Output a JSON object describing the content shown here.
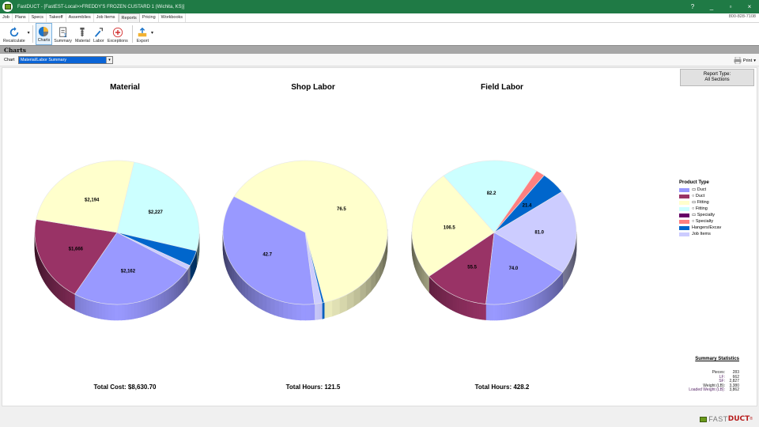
{
  "window": {
    "title": "FastDUCT - [FastEST-Local>>FREDDY'S FROZEN CUSTARD 1 (Wichita, KS)]",
    "controls": [
      "?",
      "_",
      "▫",
      "×"
    ]
  },
  "menu": {
    "tabs": [
      "Job",
      "Plans",
      "Specs",
      "Takeoff",
      "Assemblies",
      "Job Items",
      "Reports",
      "Pricing",
      "Workbooks"
    ],
    "active_tab": "Reports",
    "phone": "800-828-7108"
  },
  "toolbar": {
    "recalculate": "Recalculate",
    "charts": "Charts",
    "summary": "Summary",
    "material": "Material",
    "labor": "Labor",
    "exceptions": "Exceptions",
    "export": "Export"
  },
  "section": {
    "title": "Charts"
  },
  "chart_selector": {
    "label": "Chart",
    "value": "Material/Labor Summary",
    "print": "Print"
  },
  "report_type": {
    "line1": "Report Type:",
    "line2": "All Sections"
  },
  "legend": {
    "title": "Product Type",
    "items": [
      {
        "label": "▭ Duct",
        "color": "#9999ff"
      },
      {
        "label": "○ Duct",
        "color": "#993366"
      },
      {
        "label": "▭ Fitting",
        "color": "#ffffcc"
      },
      {
        "label": "○ Fitting",
        "color": "#ccffff"
      },
      {
        "label": "▭ Specialty",
        "color": "#660066"
      },
      {
        "label": "○ Specialty",
        "color": "#ff8080"
      },
      {
        "label": "Hangers/Excav",
        "color": "#0066cc"
      },
      {
        "label": "Job Items",
        "color": "#ccccff"
      }
    ]
  },
  "summary_statistics": {
    "title": "Summary Statistics",
    "rows": [
      {
        "key": "Pieces:",
        "value": "283"
      },
      {
        "key": "LF:",
        "value": "662"
      },
      {
        "key": "SF:",
        "value": "2,827"
      },
      {
        "key": "Weight (LB):",
        "value": "3,380"
      },
      {
        "key": "Loaded Weight (LB):",
        "value": "3,862"
      }
    ]
  },
  "charts": [
    {
      "title": "Material",
      "total": "Total Cost: $8,630.70"
    },
    {
      "title": "Shop Labor",
      "total": "Total Hours: 121.5"
    },
    {
      "title": "Field Labor",
      "total": "Total Hours: 428.2"
    }
  ],
  "chart_data": [
    {
      "type": "pie",
      "title": "Material",
      "subtitle": "Total Cost: $8,630.70",
      "categories": [
        "○ Fitting",
        "Hangers/Excav",
        "Job Items",
        "▭ Duct",
        "○ Duct",
        "▭ Fitting"
      ],
      "values": [
        2227,
        300,
        82,
        2162,
        1666,
        2194
      ],
      "labels": [
        "$2,227",
        "",
        "",
        "$2,162",
        "$1,666",
        "$2,194"
      ],
      "colors": [
        "#ccffff",
        "#0066cc",
        "#ccccff",
        "#9999ff",
        "#993366",
        "#ffffcc"
      ],
      "start_angle_deg": -78
    },
    {
      "type": "pie",
      "title": "Shop Labor",
      "subtitle": "Total Hours: 121.5",
      "categories": [
        "▭ Fitting",
        "Hangers/Excav",
        "Job Items",
        "▭ Duct"
      ],
      "values": [
        76.5,
        0.5,
        1.8,
        42.7
      ],
      "labels": [
        "76.5",
        "",
        "",
        "42.7"
      ],
      "colors": [
        "#ffffcc",
        "#0066cc",
        "#ccccff",
        "#9999ff"
      ],
      "start_angle_deg": -150
    },
    {
      "type": "pie",
      "title": "Field Labor",
      "subtitle": "Total Hours: 428.2",
      "categories": [
        "○ Fitting",
        "○ Specialty",
        "Hangers/Excav",
        "Job Items",
        "▭ Duct",
        "○ Duct",
        "▭ Fitting"
      ],
      "values": [
        82.2,
        7.6,
        21.4,
        81.0,
        74.0,
        55.5,
        106.5
      ],
      "labels": [
        "82.2",
        "",
        "21.4",
        "81.0",
        "74.0",
        "55.5",
        "106.5"
      ],
      "colors": [
        "#ccffff",
        "#ff8080",
        "#0066cc",
        "#ccccff",
        "#9999ff",
        "#993366",
        "#ffffcc"
      ],
      "start_angle_deg": -128
    }
  ]
}
